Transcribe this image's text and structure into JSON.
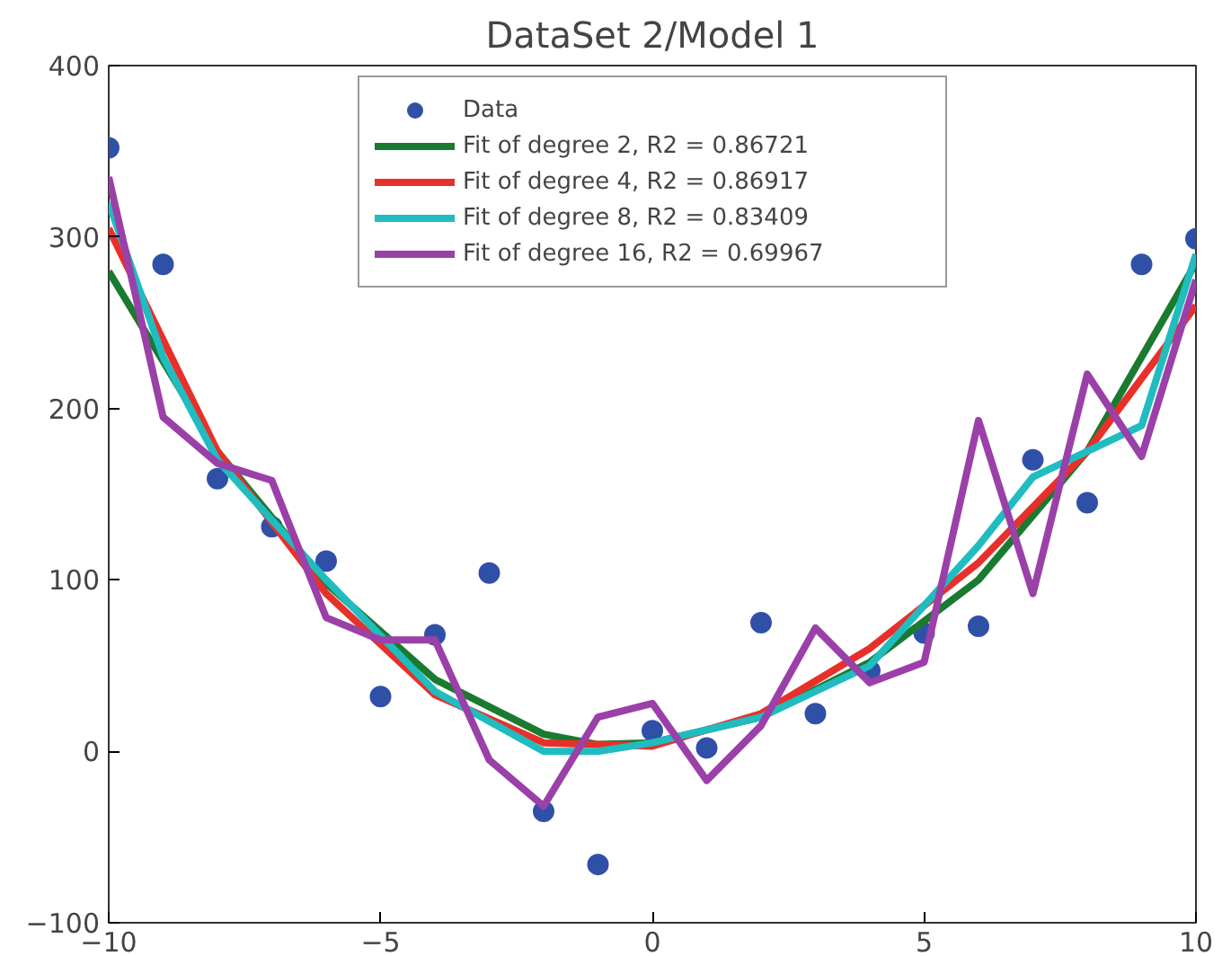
{
  "chart_data": {
    "type": "scatter",
    "title": "DataSet 2/Model 1",
    "x": [
      -10,
      -9,
      -8,
      -7,
      -6,
      -5,
      -4,
      -3,
      -2,
      -1,
      0,
      1,
      2,
      3,
      4,
      5,
      6,
      7,
      8,
      9,
      10
    ],
    "series": [
      {
        "name": "Data",
        "color": "#3050a8",
        "marker": "circle",
        "values": [
          352,
          284,
          159,
          131,
          111,
          32,
          68,
          104,
          -35,
          -66,
          12,
          2,
          75,
          22,
          47,
          69,
          73,
          170,
          145,
          284,
          299
        ]
      },
      {
        "name": "Fit of degree 2, R2 = 0.86721",
        "type": "line",
        "color": "#1a7a30",
        "x": [
          -10,
          -8,
          -6,
          -4,
          -2,
          -1,
          0,
          2,
          4,
          6,
          8,
          10
        ],
        "values": [
          280,
          175,
          98,
          42,
          10,
          4,
          5,
          20,
          52,
          100,
          175,
          285
        ]
      },
      {
        "name": "Fit of degree 4, R2 = 0.86917",
        "type": "line",
        "color": "#e8302a",
        "x": [
          -10,
          -8,
          -6,
          -4,
          -2,
          0,
          2,
          4,
          6,
          8,
          10
        ],
        "values": [
          305,
          175,
          92,
          33,
          5,
          3,
          22,
          60,
          110,
          175,
          260
        ]
      },
      {
        "name": "Fit of degree 8, R2 = 0.83409",
        "type": "line",
        "color": "#20bcc0",
        "x": [
          -10,
          -9,
          -8,
          -6,
          -4,
          -2,
          -1,
          0,
          2,
          4,
          6,
          7,
          8,
          9,
          10
        ],
        "values": [
          320,
          230,
          170,
          100,
          35,
          0,
          0,
          5,
          20,
          50,
          120,
          160,
          175,
          190,
          290
        ]
      },
      {
        "name": "Fit of degree 16, R2 = 0.69967",
        "type": "line",
        "color": "#9a40a8",
        "values": [
          335,
          195,
          168,
          158,
          78,
          65,
          65,
          -5,
          -32,
          20,
          28,
          -17,
          15,
          72,
          40,
          52,
          193,
          92,
          220,
          172,
          275
        ]
      }
    ],
    "xlim": [
      -10,
      10
    ],
    "ylim": [
      -100,
      400
    ],
    "xticks": [
      {
        "value": -10,
        "label": "−10"
      },
      {
        "value": -5,
        "label": "−5"
      },
      0,
      5,
      10
    ],
    "yticks": [
      {
        "value": -100,
        "label": "−100"
      },
      0,
      100,
      200,
      300,
      400
    ],
    "legend": "top",
    "grid": false
  }
}
